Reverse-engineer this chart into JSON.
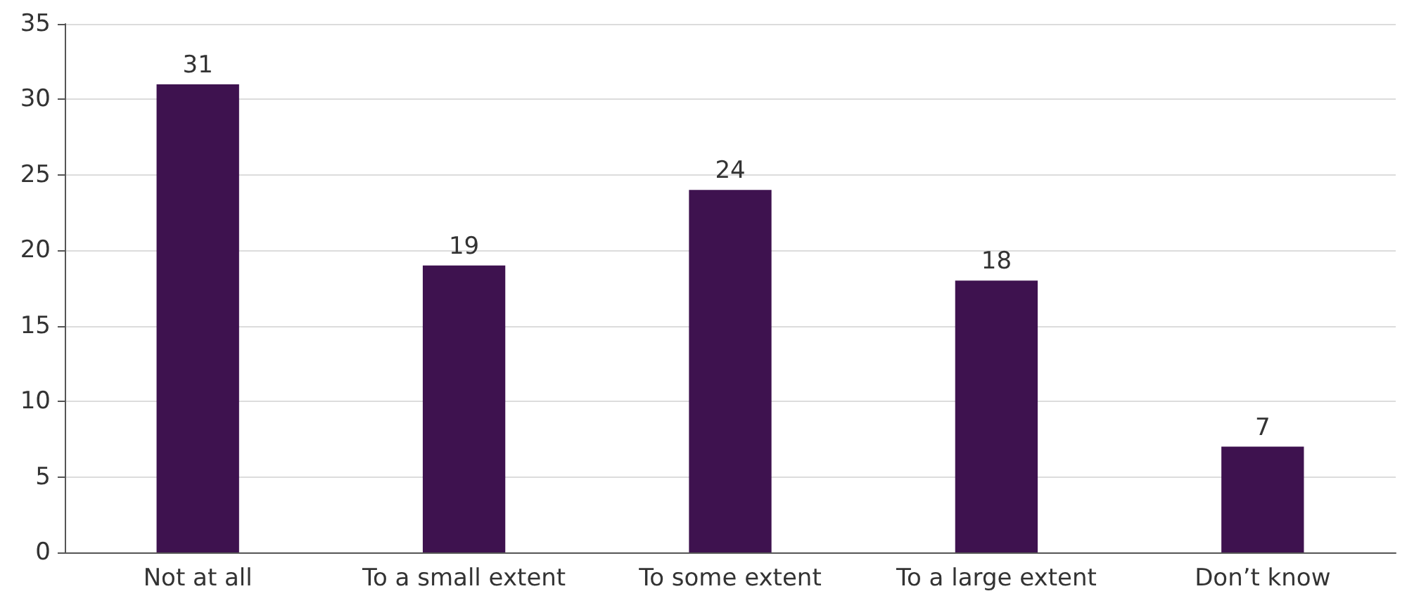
{
  "chart_data": {
    "type": "bar",
    "categories": [
      "Not at all",
      "To a small extent",
      "To some extent",
      "To a large extent",
      "Don’t know"
    ],
    "values": [
      31,
      19,
      24,
      18,
      7
    ],
    "color": "#3e124f",
    "data_labels": true,
    "ylim": [
      0,
      35
    ],
    "yticks": [
      0,
      5,
      10,
      15,
      20,
      25,
      30,
      35
    ],
    "grid": "y"
  }
}
